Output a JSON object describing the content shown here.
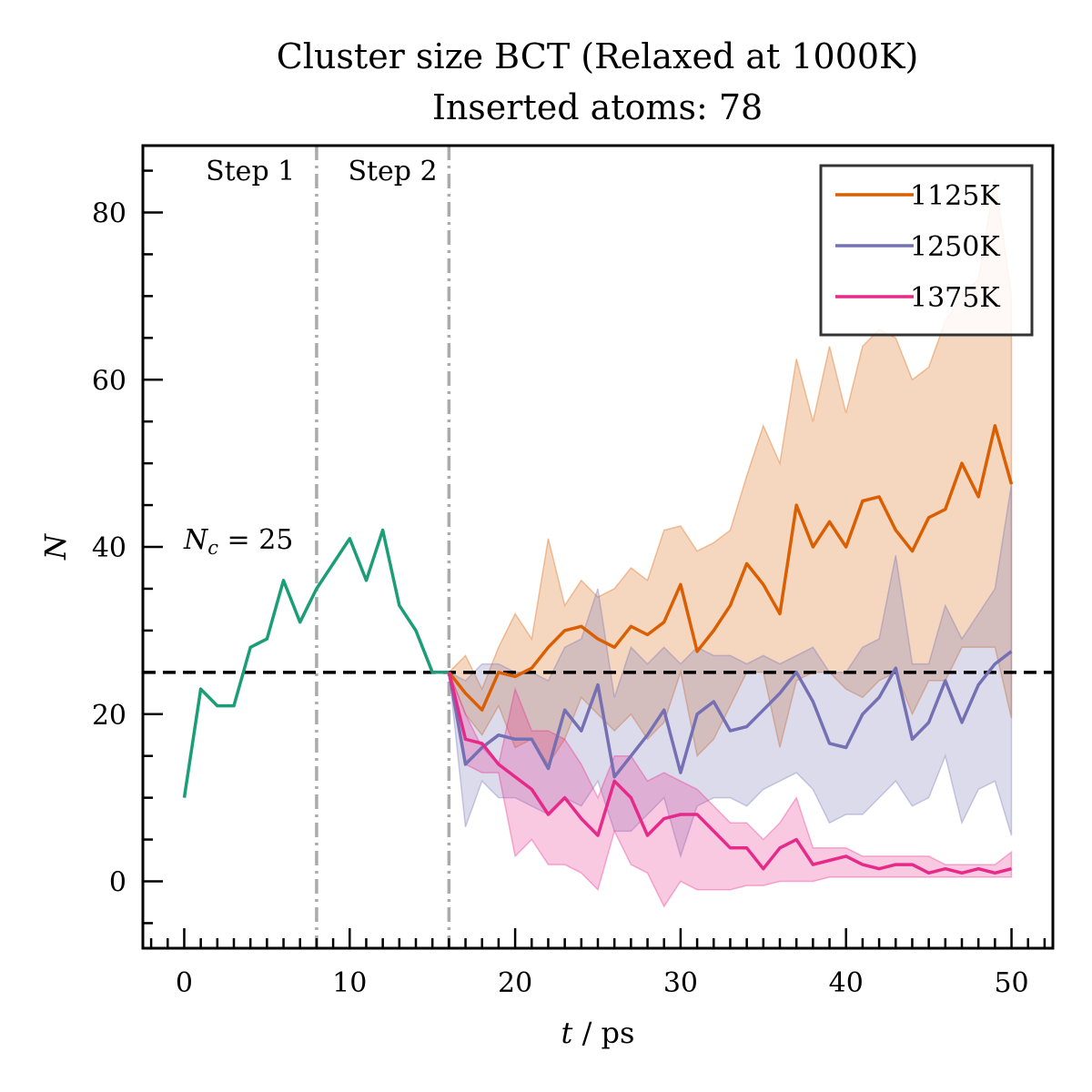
{
  "chart_data": {
    "type": "line",
    "title": "Cluster size BCT (Relaxed at 1000K)",
    "subtitle": "Inserted atoms: 78",
    "xlabel": "t / ps",
    "ylabel": "N",
    "xlim": [
      -2.5,
      52.5
    ],
    "ylim": [
      -8,
      88
    ],
    "xticks": [
      0,
      10,
      20,
      30,
      40,
      50
    ],
    "yticks": [
      0,
      20,
      40,
      60,
      80
    ],
    "grid": false,
    "legend_position": "top-right",
    "colors": {
      "step1": "#1b9e77",
      "1125K": "#d95f02",
      "1250K": "#7570b3",
      "1375K": "#e7298a",
      "step_lines": "#aaaaaa",
      "threshold": "#000000"
    },
    "annotations": {
      "step1": "Step 1",
      "step2": "Step 2",
      "threshold_label": "N_c = 25",
      "threshold_prefix": "N",
      "threshold_sub": "c",
      "threshold_suffix": " = 25"
    },
    "vlines": [
      8,
      16
    ],
    "hline": 25,
    "series": [
      {
        "name": "",
        "key": "step1",
        "x": [
          0,
          1,
          2,
          3,
          4,
          5,
          6,
          7,
          8,
          9,
          10,
          11,
          12,
          13,
          14,
          15,
          16
        ],
        "y": [
          10,
          23,
          21,
          21,
          28,
          29,
          36,
          31,
          35,
          38,
          41,
          36,
          42,
          33,
          30,
          25,
          25
        ]
      },
      {
        "name": "1125K",
        "key": "1125K",
        "x": [
          16,
          17,
          18,
          19,
          20,
          21,
          22,
          23,
          24,
          25,
          26,
          27,
          28,
          29,
          30,
          31,
          32,
          33,
          34,
          35,
          36,
          37,
          38,
          39,
          40,
          41,
          42,
          43,
          44,
          45,
          46,
          47,
          48,
          49,
          50
        ],
        "y": [
          25,
          22.5,
          20.5,
          25,
          24.5,
          25.5,
          28,
          30,
          30.5,
          29,
          28,
          30.5,
          29.5,
          31,
          35.5,
          27.5,
          30,
          33,
          38,
          35.5,
          32,
          45,
          40,
          43,
          40,
          45.5,
          46,
          42,
          39.5,
          43.5,
          44.5,
          50,
          46,
          54.5,
          47.5
        ],
        "upper": [
          25,
          27,
          23,
          28,
          32,
          29,
          41,
          33,
          36,
          34,
          35,
          37.5,
          36,
          42,
          42.5,
          39.5,
          40.5,
          42,
          48.5,
          54.5,
          50,
          62.5,
          55,
          64,
          56,
          64,
          66,
          65,
          60,
          61.5,
          67,
          70,
          72,
          84,
          70
        ],
        "lower": [
          25,
          20,
          17.5,
          21,
          16,
          17,
          14,
          17,
          22,
          20,
          18,
          20,
          17,
          19,
          25,
          15,
          17,
          21,
          25,
          25,
          16,
          24,
          25,
          25,
          23,
          22,
          24,
          25,
          20,
          24,
          24,
          28,
          28,
          28,
          19.5
        ]
      },
      {
        "name": "1250K",
        "key": "1250K",
        "x": [
          16,
          17,
          18,
          19,
          20,
          21,
          22,
          23,
          24,
          25,
          26,
          27,
          28,
          29,
          30,
          31,
          32,
          33,
          34,
          35,
          36,
          37,
          38,
          39,
          40,
          41,
          42,
          43,
          44,
          45,
          46,
          47,
          48,
          49,
          50
        ],
        "y": [
          25,
          14,
          16,
          17.5,
          17,
          17,
          13.5,
          20.5,
          18,
          23.5,
          12.5,
          15,
          17.5,
          20.5,
          13,
          20,
          21.5,
          18,
          18.5,
          20.5,
          22.5,
          25,
          21.5,
          16.5,
          16,
          20,
          22,
          25.5,
          17,
          19,
          24,
          19,
          23.5,
          26,
          27.5
        ],
        "upper": [
          25,
          24,
          26,
          26,
          25,
          25,
          24,
          28,
          29,
          35,
          22,
          28,
          26,
          28,
          26,
          28,
          27,
          27,
          26,
          27,
          26,
          27,
          28,
          25,
          25,
          28,
          29,
          39,
          26,
          26,
          33,
          29,
          32,
          35,
          47.5
        ],
        "lower": [
          25,
          6.5,
          12,
          10,
          10,
          9,
          8,
          10,
          9,
          12,
          6,
          6,
          8,
          10,
          3,
          9,
          10,
          10,
          9,
          11,
          12,
          13,
          11,
          7,
          8,
          8,
          10,
          12,
          9,
          10,
          15,
          7,
          11,
          12,
          5.5
        ]
      },
      {
        "name": "1375K",
        "key": "1375K",
        "x": [
          16,
          17,
          18,
          19,
          20,
          21,
          22,
          23,
          24,
          25,
          26,
          27,
          28,
          29,
          30,
          31,
          32,
          33,
          34,
          35,
          36,
          37,
          38,
          39,
          40,
          41,
          42,
          43,
          44,
          45,
          46,
          47,
          48,
          49,
          50
        ],
        "y": [
          25,
          17,
          16.5,
          14,
          12.5,
          11,
          8,
          10,
          7.5,
          5.5,
          12,
          10,
          5.5,
          7.5,
          8,
          8,
          6,
          4,
          4,
          1.5,
          4,
          5,
          2,
          2.5,
          3,
          2,
          1.5,
          2,
          2,
          1,
          1.5,
          1,
          1.5,
          1,
          1.5
        ],
        "upper": [
          25,
          20,
          16,
          14,
          23,
          18,
          18,
          17,
          14,
          10,
          15,
          15,
          12,
          13,
          12,
          11,
          9,
          7,
          7,
          5,
          7,
          10,
          4,
          4,
          4,
          3,
          3,
          3,
          3,
          3,
          2,
          2,
          2,
          2,
          3.5
        ],
        "lower": [
          25,
          14,
          13,
          13,
          3,
          5,
          2,
          2,
          1,
          -1,
          6,
          2,
          1,
          -3,
          0,
          -1,
          -1,
          -1,
          -0.5,
          -0.5,
          0,
          0,
          0,
          0.5,
          0.5,
          0.5,
          0.5,
          0.5,
          0.5,
          0.5,
          0.5,
          0.5,
          0.5,
          0.5,
          0.5
        ]
      }
    ]
  }
}
